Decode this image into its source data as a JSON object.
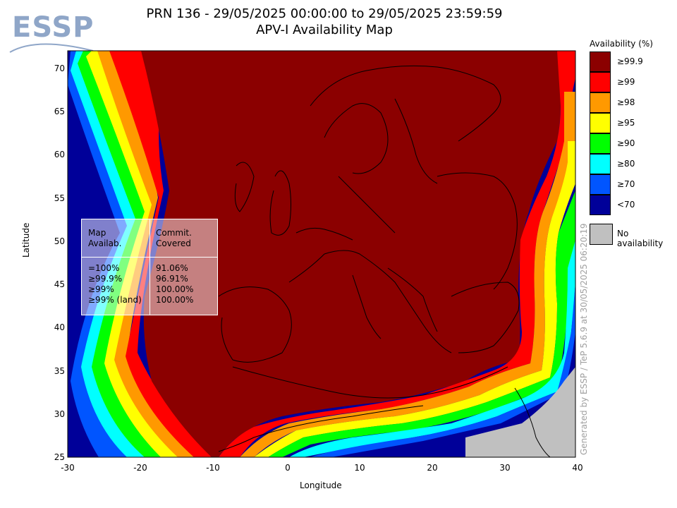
{
  "logo": {
    "text": "ESSP"
  },
  "title": {
    "line1": "PRN 136 - 29/05/2025 00:00:00 to 29/05/2025 23:59:59",
    "line2": "APV-I Availability Map"
  },
  "axes": {
    "xlabel": "Longitude",
    "ylabel": "Latitude",
    "xticks": [
      "-30",
      "-20",
      "-10",
      "0",
      "10",
      "20",
      "30",
      "40"
    ],
    "yticks": [
      "70",
      "65",
      "60",
      "55",
      "50",
      "45",
      "40",
      "35",
      "30",
      "25"
    ],
    "xlim": [
      -30,
      40
    ],
    "ylim": [
      25,
      72
    ]
  },
  "legend": {
    "title": "Availability (%)",
    "items": [
      {
        "label": "≥99.9",
        "color": "#8b0000"
      },
      {
        "label": "≥99",
        "color": "#ff0000"
      },
      {
        "label": "≥98",
        "color": "#ff9900"
      },
      {
        "label": "≥95",
        "color": "#ffff00"
      },
      {
        "label": "≥90",
        "color": "#00ff00"
      },
      {
        "label": "≥80",
        "color": "#00ffff"
      },
      {
        "label": "≥70",
        "color": "#0055ff"
      },
      {
        "label": "<70",
        "color": "#000099"
      }
    ],
    "no_availability": {
      "label": "No availability",
      "color": "#c0c0c0"
    }
  },
  "stats_table": {
    "col1_header": "Map\nAvailab.",
    "col2_header": "Commit.\nCovered",
    "rows": [
      {
        "map": "=100%",
        "covered": "91.06%"
      },
      {
        "map": "≥99.9%",
        "covered": "96.91%"
      },
      {
        "map": "≥99%",
        "covered": "100.00%"
      },
      {
        "map": "≥99% (land)",
        "covered": "100.00%"
      }
    ]
  },
  "footer": {
    "generated": "Generated by ESSP / TeP 5.6.9 at 30/05/2025 06:20:19"
  }
}
